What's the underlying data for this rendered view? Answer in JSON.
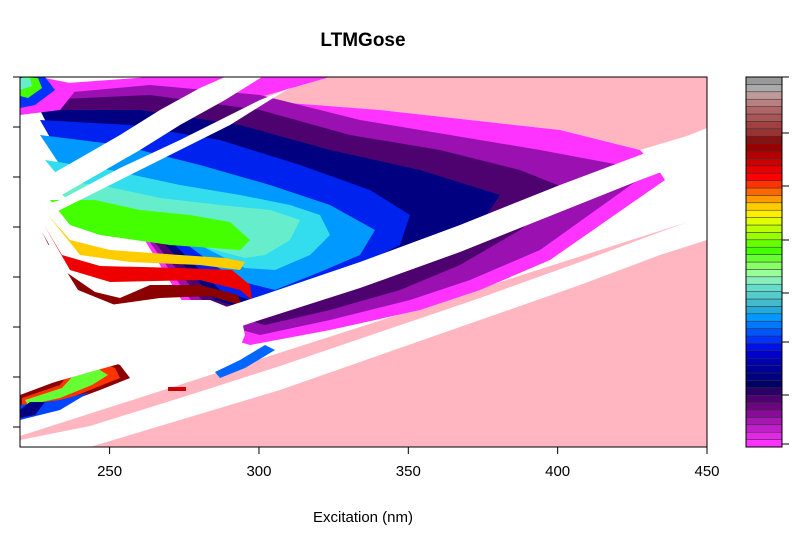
{
  "chart_data": {
    "type": "heatmap",
    "title": "LTMGose",
    "xlabel": "Excitation (nm)",
    "ylabel": "",
    "xlim": [
      220,
      450
    ],
    "x_ticks": [
      250,
      300,
      350,
      400,
      450
    ],
    "y_tick_count": 8,
    "grid": false,
    "colorbar": {
      "colors": [
        "#ff33ff",
        "#e22ae6",
        "#c21fcc",
        "#a516b3",
        "#8a0b99",
        "#6e0580",
        "#4d0270",
        "#2a0066",
        "#000066",
        "#000080",
        "#000099",
        "#0000b3",
        "#0000cc",
        "#0011e6",
        "#0033ff",
        "#0055ff",
        "#0077ff",
        "#0099ff",
        "#22aadd",
        "#44bbcc",
        "#55cccc",
        "#66ddcc",
        "#88eebb",
        "#99ff99",
        "#88ff66",
        "#66ff33",
        "#44ff00",
        "#66ff00",
        "#99ff00",
        "#bbff00",
        "#ddff00",
        "#ffee00",
        "#ffcc00",
        "#ff9900",
        "#ff6600",
        "#ff3300",
        "#ff0000",
        "#e60000",
        "#cc0000",
        "#b30000",
        "#990000",
        "#8a1111",
        "#993333",
        "#a04040",
        "#aa5555",
        "#b06666",
        "#b88080",
        "#c09999",
        "#aaaaaa",
        "#999999"
      ]
    },
    "colors": {
      "low_background": "#ffb6c1",
      "missing": "#ffffff"
    }
  }
}
